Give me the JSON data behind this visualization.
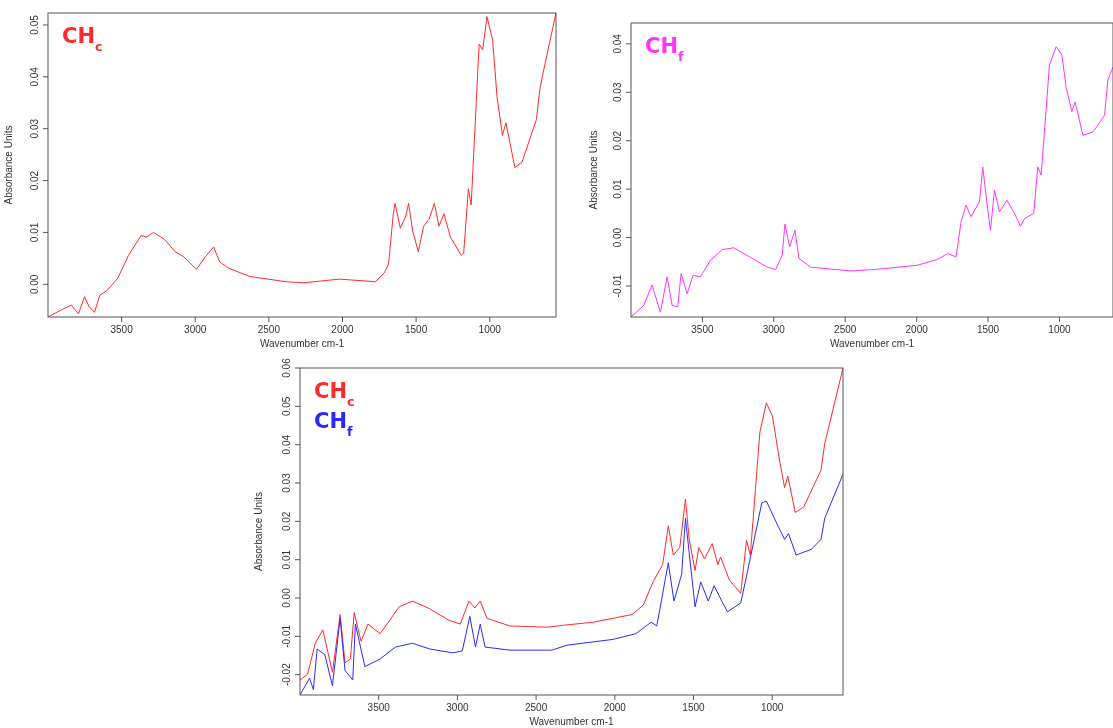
{
  "chart_data": [
    {
      "type": "line",
      "xlabel": "Wavenumber cm-1",
      "ylabel": "Absorbance Units",
      "legend": "top left",
      "xlim": [
        4000,
        550
      ],
      "ylim": [
        -0.0063,
        0.0523
      ],
      "xticks": [
        3500,
        3000,
        2500,
        2000,
        1500,
        1000
      ],
      "yticks": [
        {
          "value": 0,
          "label": "0.00"
        },
        {
          "value": 0.01,
          "label": "0.01"
        },
        {
          "value": 0.02,
          "label": "0.02"
        },
        {
          "value": 0.03,
          "label": "0.03"
        },
        {
          "value": 0.04,
          "label": "0.04"
        },
        {
          "value": 0.05,
          "label": "0.05"
        }
      ],
      "series": [
        {
          "name": "CH$_{c}$",
          "color": "#ff2a2a",
          "x": [
            4000,
            3915,
            3842,
            3793,
            3752,
            3721,
            3684,
            3648,
            3599,
            3526,
            3453,
            3368,
            3332,
            3283,
            3210,
            3137,
            3077,
            2992,
            2931,
            2875,
            2834,
            2773,
            2627,
            2384,
            2263,
            2020,
            1777,
            1716,
            1687,
            1655,
            1643,
            1607,
            1570,
            1551,
            1522,
            1485,
            1449,
            1413,
            1376,
            1345,
            1311,
            1267,
            1194,
            1177,
            1145,
            1126,
            1072,
            1048,
            1019,
            980,
            951,
            914,
            890,
            829,
            780,
            683,
            659,
            635,
            550
          ],
          "values": [
            -0.0063,
            -0.005,
            -0.004,
            -0.0057,
            -0.0024,
            -0.0043,
            -0.0054,
            -0.0021,
            -0.0012,
            0.0012,
            0.0056,
            0.0094,
            0.0091,
            0.01,
            0.0087,
            0.0063,
            0.0053,
            0.0029,
            0.0053,
            0.0072,
            0.0043,
            0.0031,
            0.0015,
            0.0005,
            0.0003,
            0.001,
            0.0005,
            0.0022,
            0.0039,
            0.0136,
            0.0156,
            0.0108,
            0.0132,
            0.0156,
            0.0101,
            0.0063,
            0.0112,
            0.0125,
            0.0156,
            0.0112,
            0.0136,
            0.0091,
            0.0056,
            0.006,
            0.0184,
            0.0153,
            0.0463,
            0.0452,
            0.0516,
            0.047,
            0.0363,
            0.0287,
            0.0311,
            0.0225,
            0.0236,
            0.0318,
            0.0377,
            0.0411,
            0.0523
          ]
        }
      ]
    },
    {
      "type": "line",
      "xlabel": "Wavenumber cm-1",
      "ylabel": "Absorbance Units",
      "legend": "top left",
      "xlim": [
        4000,
        625
      ],
      "ylim": [
        -0.0164,
        0.0443
      ],
      "xticks": [
        3500,
        3000,
        2500,
        2000,
        1500,
        1000
      ],
      "yticks": [
        {
          "value": -0.01,
          "label": "-0.01"
        },
        {
          "value": 0,
          "label": "0.00"
        },
        {
          "value": 0.01,
          "label": "0.01"
        },
        {
          "value": 0.02,
          "label": "0.02"
        },
        {
          "value": 0.03,
          "label": "0.03"
        },
        {
          "value": 0.04,
          "label": "0.04"
        }
      ],
      "series": [
        {
          "name": "CH$_{f}$",
          "color": "#ff33ff",
          "x": [
            4000,
            3911,
            3853,
            3794,
            3747,
            3712,
            3673,
            3649,
            3607,
            3565,
            3514,
            3444,
            3362,
            3280,
            3163,
            3046,
            2987,
            2941,
            2922,
            2889,
            2852,
            2824,
            2742,
            2461,
            2298,
            1993,
            1853,
            1783,
            1724,
            1689,
            1654,
            1619,
            1560,
            1537,
            1513,
            1483,
            1455,
            1420,
            1367,
            1315,
            1273,
            1245,
            1180,
            1152,
            1128,
            1070,
            1023,
            983,
            953,
            913,
            890,
            836,
            766,
            731,
            684,
            661,
            625
          ],
          "values": [
            -0.0164,
            -0.014,
            -0.0098,
            -0.0154,
            -0.0081,
            -0.014,
            -0.0143,
            -0.0074,
            -0.0116,
            -0.0078,
            -0.0081,
            -0.0047,
            -0.0025,
            -0.0021,
            -0.0041,
            -0.0061,
            -0.0066,
            -0.0036,
            0.0028,
            -0.0019,
            0.0015,
            -0.0043,
            -0.0061,
            -0.0069,
            -0.0066,
            -0.0057,
            -0.0045,
            -0.0033,
            -0.004,
            0.0032,
            0.0067,
            0.0043,
            0.0074,
            0.0146,
            0.0084,
            0.0015,
            0.0098,
            0.0053,
            0.0077,
            0.005,
            0.0023,
            0.0039,
            0.005,
            0.0146,
            0.0129,
            0.0356,
            0.0394,
            0.0377,
            0.031,
            0.026,
            0.028,
            0.0211,
            0.0218,
            0.0232,
            0.0253,
            0.0325,
            0.0352
          ]
        }
      ]
    },
    {
      "type": "line",
      "xlabel": "Wavenumber cm-1",
      "ylabel": "Absorbance Units",
      "legend": "top left",
      "xlim": [
        4000,
        550
      ],
      "ylim": [
        -0.0253,
        0.06
      ],
      "xticks": [
        3500,
        3000,
        2500,
        2000,
        1500,
        1000
      ],
      "yticks": [
        {
          "value": -0.02,
          "label": "-0.02"
        },
        {
          "value": -0.01,
          "label": "-0.01"
        },
        {
          "value": 0,
          "label": "0.00"
        },
        {
          "value": 0.01,
          "label": "0.01"
        },
        {
          "value": 0.02,
          "label": "0.02"
        },
        {
          "value": 0.03,
          "label": "0.03"
        },
        {
          "value": 0.04,
          "label": "0.04"
        },
        {
          "value": 0.05,
          "label": "0.05"
        },
        {
          "value": 0.06,
          "label": "0.06"
        }
      ],
      "series": [
        {
          "name": "CH$_{c}$",
          "color": "#ff2a2a",
          "x": [
            4000,
            3952,
            3903,
            3855,
            3794,
            3745,
            3714,
            3680,
            3656,
            3612,
            3568,
            3491,
            3370,
            3285,
            3176,
            3054,
            2982,
            2926,
            2889,
            2855,
            2812,
            2666,
            2424,
            2327,
            2133,
            1890,
            1818,
            1757,
            1696,
            1660,
            1628,
            1587,
            1551,
            1527,
            1490,
            1466,
            1430,
            1381,
            1345,
            1328,
            1272,
            1200,
            1163,
            1139,
            1078,
            1037,
            998,
            957,
            921,
            901,
            853,
            799,
            690,
            666,
            550
          ],
          "values": [
            -0.0214,
            -0.0199,
            -0.0118,
            -0.0083,
            -0.0194,
            -0.0043,
            -0.0169,
            -0.0159,
            -0.0038,
            -0.0113,
            -0.0068,
            -0.0093,
            -0.0023,
            -0.0008,
            -0.0028,
            -0.0058,
            -0.0068,
            -0.0008,
            -0.0026,
            -0.0008,
            -0.0053,
            -0.0073,
            -0.0076,
            -0.0071,
            -0.0063,
            -0.0043,
            -0.0018,
            0.0042,
            0.0087,
            0.0188,
            0.0112,
            0.0132,
            0.0258,
            0.0153,
            0.0072,
            0.0132,
            0.0102,
            0.0142,
            0.0087,
            0.0107,
            0.0047,
            0.0012,
            0.015,
            0.0112,
            0.0433,
            0.0509,
            0.0474,
            0.0368,
            0.0288,
            0.0318,
            0.0223,
            0.0238,
            0.0333,
            0.0403,
            0.06
          ]
        },
        {
          "name": "CH$_{f}$",
          "color": "#2a2aff",
          "x": [
            4000,
            3939,
            3915,
            3891,
            3842,
            3794,
            3745,
            3714,
            3665,
            3648,
            3588,
            3491,
            3394,
            3285,
            3176,
            3030,
            2969,
            2921,
            2885,
            2855,
            2824,
            2666,
            2400,
            2303,
            2012,
            1866,
            1769,
            1733,
            1660,
            1624,
            1575,
            1551,
            1515,
            1490,
            1454,
            1406,
            1369,
            1320,
            1284,
            1200,
            1163,
            1066,
            1037,
            969,
            921,
            896,
            848,
            751,
            690,
            666,
            550
          ],
          "values": [
            -0.0253,
            -0.0209,
            -0.0239,
            -0.0133,
            -0.0148,
            -0.0229,
            -0.0053,
            -0.0189,
            -0.0214,
            -0.0068,
            -0.0179,
            -0.0159,
            -0.0128,
            -0.0118,
            -0.0133,
            -0.0143,
            -0.0138,
            -0.0048,
            -0.0128,
            -0.0068,
            -0.0128,
            -0.0136,
            -0.0136,
            -0.0123,
            -0.0108,
            -0.0093,
            -0.0063,
            -0.0073,
            0.0092,
            -0.0008,
            0.0062,
            0.0208,
            0.0072,
            -0.0023,
            0.0042,
            -0.0008,
            0.0032,
            -0.0008,
            -0.0036,
            -0.0013,
            0.0057,
            0.0248,
            0.0253,
            0.0193,
            0.0153,
            0.0168,
            0.0112,
            0.0127,
            0.0153,
            0.0208,
            0.0323
          ]
        }
      ]
    }
  ]
}
